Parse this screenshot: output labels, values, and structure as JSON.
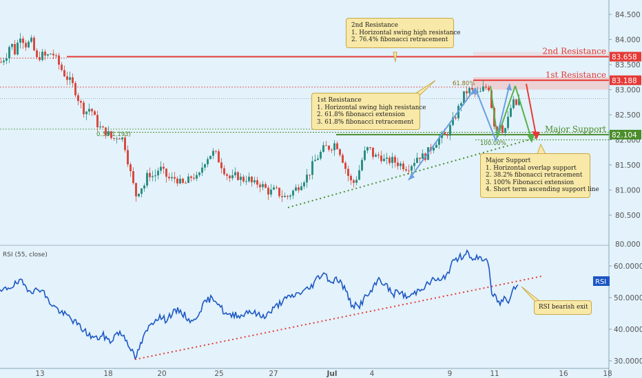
{
  "chart_data": [
    {
      "type": "line",
      "subtype": "candlestick",
      "title": "",
      "y_ticks": [
        "80.500",
        "81.000",
        "81.500",
        "82.000",
        "82.500",
        "83.000",
        "83.500",
        "84.000",
        "84.500"
      ],
      "y_bottom_label": "80.000",
      "x_ticks": [
        "13",
        "18",
        "20",
        "25",
        "27",
        "Jul",
        "4",
        "9",
        "11",
        "16",
        "18"
      ],
      "ylim": [
        80.0,
        84.8
      ],
      "grid": false,
      "levels": [
        {
          "name": "2nd Resistance",
          "value": 83.658,
          "value_label": "83.658",
          "color": "#e53935"
        },
        {
          "name": "1st Resistance",
          "value": 83.188,
          "value_label": "83.188",
          "color": "#e53935"
        },
        {
          "name": "Major Support",
          "value": 82.104,
          "value_label": "82.104",
          "color": "#4a8d2a"
        }
      ],
      "fib_labels": {
        "left": "0.38(",
        "left_value": "1.193)",
        "retracement": "61.80%",
        "extension": "100.00%"
      },
      "candles_anchor": [
        [
          0,
          83.55
        ],
        [
          8,
          83.7
        ],
        [
          14,
          83.95
        ],
        [
          20,
          83.75
        ],
        [
          28,
          84.1
        ],
        [
          36,
          83.9
        ],
        [
          44,
          83.95
        ],
        [
          52,
          83.6
        ],
        [
          58,
          83.7
        ],
        [
          66,
          83.65
        ],
        [
          74,
          83.75
        ],
        [
          82,
          83.55
        ],
        [
          90,
          83.35
        ],
        [
          98,
          83.2
        ],
        [
          106,
          83.05
        ],
        [
          114,
          82.75
        ],
        [
          122,
          82.55
        ],
        [
          130,
          82.65
        ],
        [
          138,
          82.35
        ],
        [
          146,
          82.2
        ],
        [
          154,
          82.15
        ],
        [
          162,
          82.0
        ],
        [
          170,
          82.1
        ],
        [
          178,
          82.0
        ],
        [
          184,
          81.6
        ],
        [
          190,
          81.2
        ],
        [
          196,
          80.9
        ],
        [
          202,
          81.05
        ],
        [
          208,
          81.1
        ],
        [
          214,
          81.35
        ],
        [
          222,
          81.25
        ],
        [
          230,
          81.45
        ],
        [
          238,
          81.3
        ],
        [
          246,
          81.2
        ],
        [
          254,
          81.25
        ],
        [
          262,
          81.1
        ],
        [
          270,
          81.15
        ],
        [
          278,
          81.3
        ],
        [
          286,
          81.2
        ],
        [
          294,
          81.55
        ],
        [
          302,
          81.7
        ],
        [
          310,
          81.75
        ],
        [
          318,
          81.55
        ],
        [
          326,
          81.35
        ],
        [
          334,
          81.2
        ],
        [
          342,
          81.3
        ],
        [
          350,
          81.2
        ],
        [
          358,
          81.25
        ],
        [
          366,
          81.1
        ],
        [
          374,
          81.15
        ],
        [
          382,
          81.05
        ],
        [
          390,
          80.95
        ],
        [
          398,
          81.0
        ],
        [
          406,
          80.9
        ],
        [
          414,
          80.85
        ],
        [
          422,
          80.95
        ],
        [
          430,
          81.05
        ],
        [
          438,
          81.2
        ],
        [
          446,
          81.3
        ],
        [
          454,
          81.55
        ],
        [
          462,
          81.7
        ],
        [
          470,
          81.85
        ],
        [
          478,
          81.85
        ],
        [
          486,
          81.95
        ],
        [
          494,
          81.7
        ],
        [
          502,
          81.35
        ],
        [
          510,
          81.1
        ],
        [
          518,
          81.3
        ],
        [
          526,
          81.7
        ],
        [
          534,
          81.85
        ],
        [
          542,
          81.65
        ],
        [
          550,
          81.7
        ],
        [
          558,
          81.55
        ],
        [
          566,
          81.6
        ],
        [
          574,
          81.55
        ],
        [
          582,
          81.5
        ],
        [
          590,
          81.45
        ],
        [
          598,
          81.55
        ],
        [
          606,
          81.7
        ],
        [
          614,
          81.65
        ],
        [
          622,
          81.8
        ],
        [
          630,
          81.95
        ],
        [
          638,
          82.05
        ],
        [
          646,
          82.1
        ],
        [
          654,
          82.3
        ],
        [
          662,
          82.55
        ],
        [
          670,
          82.85
        ],
        [
          678,
          83.0
        ],
        [
          686,
          82.95
        ],
        [
          694,
          82.9
        ],
        [
          702,
          83.05
        ],
        [
          708,
          83.05
        ],
        [
          714,
          82.5
        ],
        [
          718,
          82.15
        ],
        [
          724,
          82.35
        ],
        [
          730,
          82.15
        ],
        [
          736,
          82.4
        ],
        [
          742,
          82.75
        ],
        [
          748,
          82.7
        ],
        [
          754,
          82.85
        ]
      ]
    },
    {
      "type": "line",
      "title": "RSI (55, close)",
      "legend_badge": "RSI",
      "y_ticks": [
        "30.0000",
        "40.0000",
        "50.0000",
        "60.0000"
      ],
      "ylim": [
        28.5,
        66.5
      ],
      "series_anchor": [
        [
          0,
          51.5
        ],
        [
          10,
          53
        ],
        [
          20,
          54
        ],
        [
          30,
          55
        ],
        [
          40,
          53
        ],
        [
          50,
          52
        ],
        [
          60,
          53
        ],
        [
          70,
          49
        ],
        [
          80,
          47
        ],
        [
          90,
          45
        ],
        [
          100,
          44
        ],
        [
          110,
          42
        ],
        [
          120,
          40
        ],
        [
          130,
          38
        ],
        [
          140,
          37
        ],
        [
          150,
          38
        ],
        [
          160,
          36
        ],
        [
          170,
          39
        ],
        [
          180,
          38
        ],
        [
          190,
          34
        ],
        [
          196,
          30.5
        ],
        [
          204,
          35
        ],
        [
          212,
          39
        ],
        [
          220,
          42
        ],
        [
          230,
          44
        ],
        [
          240,
          43
        ],
        [
          250,
          45
        ],
        [
          260,
          46
        ],
        [
          270,
          44
        ],
        [
          280,
          42
        ],
        [
          290,
          46
        ],
        [
          300,
          49
        ],
        [
          310,
          50
        ],
        [
          318,
          48
        ],
        [
          326,
          45
        ],
        [
          334,
          44
        ],
        [
          342,
          45
        ],
        [
          350,
          44
        ],
        [
          360,
          46
        ],
        [
          370,
          45
        ],
        [
          380,
          44
        ],
        [
          390,
          45
        ],
        [
          400,
          47
        ],
        [
          410,
          49
        ],
        [
          420,
          50
        ],
        [
          430,
          51
        ],
        [
          440,
          52
        ],
        [
          450,
          53
        ],
        [
          460,
          56
        ],
        [
          470,
          58
        ],
        [
          480,
          55
        ],
        [
          490,
          56
        ],
        [
          500,
          53
        ],
        [
          510,
          48
        ],
        [
          520,
          47
        ],
        [
          530,
          50
        ],
        [
          540,
          52
        ],
        [
          550,
          56
        ],
        [
          560,
          54
        ],
        [
          570,
          51
        ],
        [
          580,
          52
        ],
        [
          590,
          50
        ],
        [
          600,
          51
        ],
        [
          610,
          53
        ],
        [
          620,
          54
        ],
        [
          630,
          56
        ],
        [
          640,
          55
        ],
        [
          650,
          58
        ],
        [
          660,
          62
        ],
        [
          670,
          63
        ],
        [
          680,
          65
        ],
        [
          686,
          61
        ],
        [
          694,
          63
        ],
        [
          702,
          62
        ],
        [
          708,
          62
        ],
        [
          714,
          51
        ],
        [
          720,
          50
        ],
        [
          726,
          48
        ],
        [
          732,
          50
        ],
        [
          738,
          49
        ],
        [
          744,
          53
        ],
        [
          750,
          54
        ]
      ]
    }
  ],
  "annotations": {
    "res2_lines": [
      "2nd Resistance",
      "1. Horizontal swing high resistance",
      "2. 76.4% fibonacci retracement"
    ],
    "res1_lines": [
      "1st Resistance",
      "1. Horizontal swing high resistance",
      "2. 61.8% fibonacci extension",
      "3. 61.8% fibonacci retracement"
    ],
    "sup_lines": [
      "Major Support",
      "1. Horizontal overlap support",
      "2. 38.2% fibonacci retracement",
      "3. 100% Fibonacci extension",
      "4. Short term ascending support line"
    ],
    "rsi_note": "RSI bearish exit"
  },
  "colors": {
    "background": "#e3f2fb",
    "candle_up": "#2b8f82",
    "candle_down": "#d84a40",
    "rsi": "#1c56c4",
    "resistance": "#e53935",
    "support": "#4a8d2a",
    "note_bg": "#f8e9a8"
  }
}
